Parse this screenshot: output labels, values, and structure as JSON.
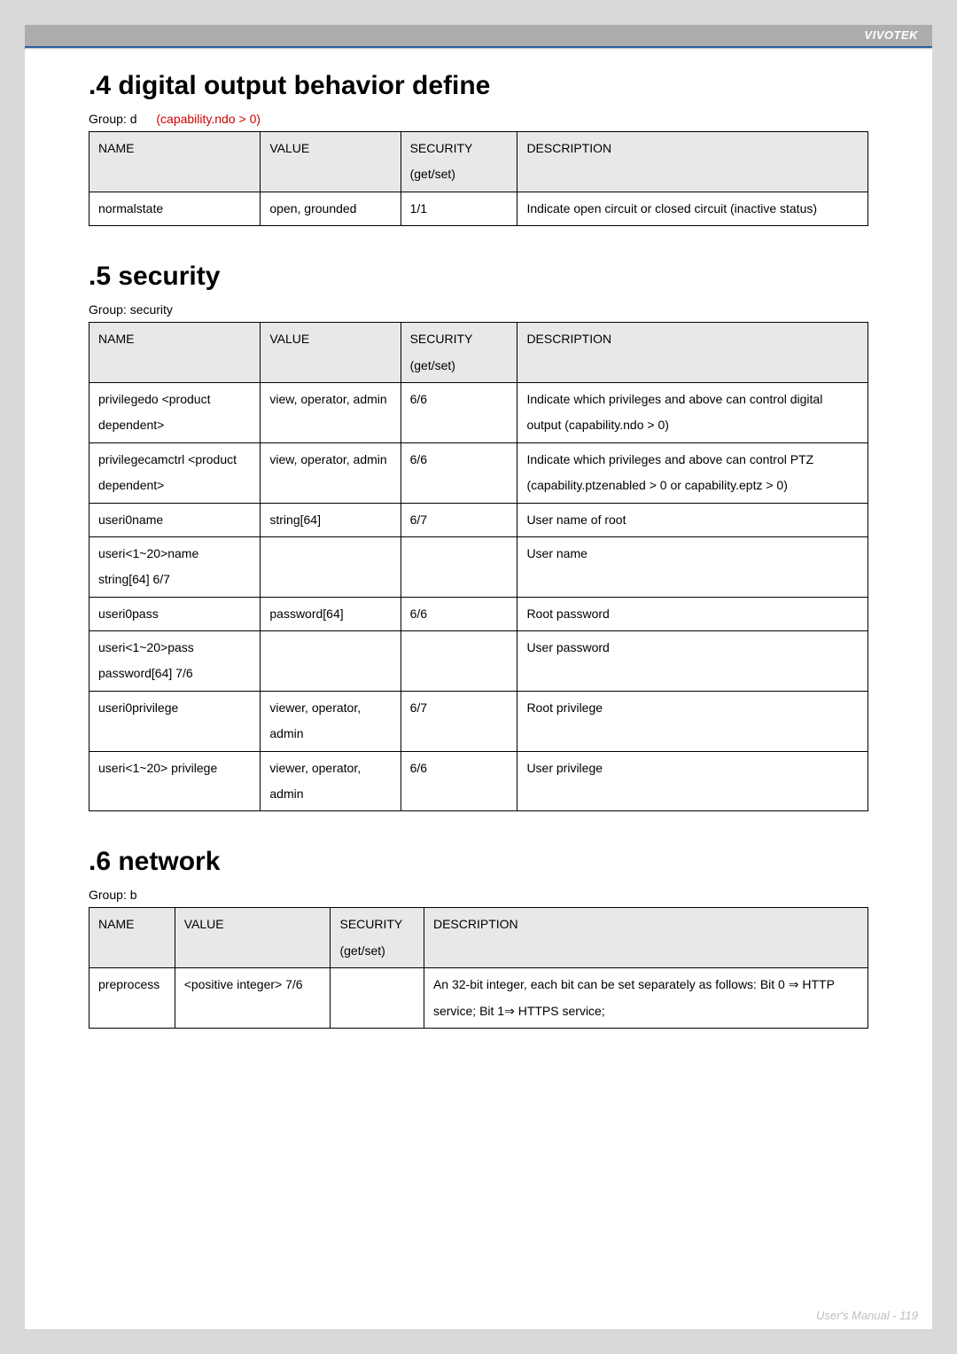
{
  "brand": "VIVOTEK",
  "footer": "User's Manual - 119",
  "sections": {
    "s4": {
      "title": ".4 digital output behavior define",
      "group_label": "Group: d",
      "capability": "(capability.ndo > 0)",
      "headers": {
        "name": "NAME",
        "value": "VALUE",
        "security": "SECURITY",
        "security_sub": "(get/set)",
        "desc": "DESCRIPTION"
      },
      "row": {
        "name": "normalstate",
        "value": "open, grounded",
        "security": "1/1",
        "desc": "Indicate open circuit or closed circuit (inactive status)"
      }
    },
    "s5": {
      "title": ".5 security",
      "group_label": "Group: security",
      "headers": {
        "name": "NAME",
        "value": "VALUE",
        "security": "SECURITY",
        "security_sub": "(get/set)",
        "desc": "DESCRIPTION"
      },
      "rows": [
        {
          "name": "privilegedo <product dependent>",
          "value": "view, operator, admin",
          "security": "6/6",
          "desc": "Indicate which privileges and above can control digital output (capability.ndo > 0)"
        },
        {
          "name": "privilegecamctrl <product dependent>",
          "value": "view, operator, admin",
          "security": "6/6",
          "desc": "Indicate which privileges and above can control PTZ (capability.ptzenabled > 0 or capability.eptz > 0)"
        },
        {
          "name": "useri0name",
          "value": "string[64]",
          "security": "6/7",
          "desc": "User name of root"
        },
        {
          "name": "useri<1~20>name         string[64]               6/7",
          "value": "",
          "security": "",
          "desc": "User name"
        },
        {
          "name": "useri0pass",
          "value": "password[64]",
          "security": "6/6",
          "desc": "Root password"
        },
        {
          "name": "useri<1~20>pass         password[64]         7/6",
          "value": "",
          "security": "",
          "desc": "User password"
        },
        {
          "name": "useri0privilege",
          "value": "viewer, operator, admin",
          "security": "6/7",
          "desc": "Root privilege"
        },
        {
          "name": "useri<1~20> privilege",
          "value": "viewer, operator, admin",
          "security": "6/6",
          "desc": "User privilege"
        }
      ]
    },
    "s6": {
      "title": ".6 network",
      "group_label": "Group: b",
      "headers": {
        "name": "NAME",
        "value": "VALUE",
        "security": "SECURITY",
        "security_sub": "(get/set)",
        "desc": "DESCRIPTION"
      },
      "row": {
        "name": "preprocess",
        "value": "<positive integer>     7/6",
        "security": "",
        "desc": "An 32-bit integer, each bit can be set separately as follows: Bit 0 ⇒ HTTP service; Bit 1⇒ HTTPS service;"
      }
    }
  }
}
